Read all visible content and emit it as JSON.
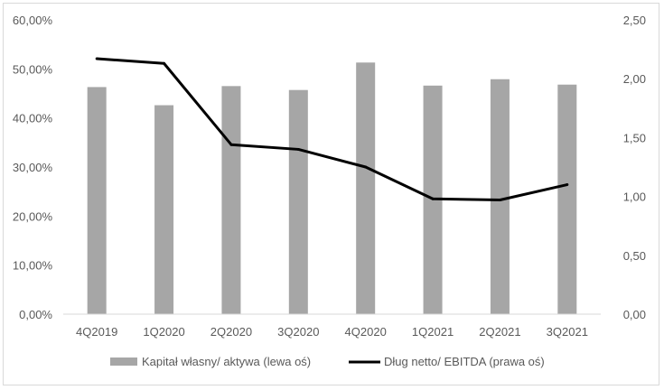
{
  "chart_data": {
    "type": "bar",
    "categories": [
      "4Q2019",
      "1Q2020",
      "2Q2020",
      "3Q2020",
      "4Q2020",
      "1Q2021",
      "2Q2021",
      "3Q2021"
    ],
    "series": [
      {
        "name": "Kapitał własny/ aktywa (lewa oś)",
        "type": "bar",
        "axis": "left",
        "values": [
          46.3,
          42.6,
          46.5,
          45.7,
          51.3,
          46.6,
          47.9,
          46.8
        ]
      },
      {
        "name": "Dług netto/ EBITDA (prawa oś)",
        "type": "line",
        "axis": "right",
        "values": [
          2.17,
          2.13,
          1.44,
          1.4,
          1.25,
          0.98,
          0.97,
          1.1
        ]
      }
    ],
    "left_axis": {
      "ylim": [
        0,
        60
      ],
      "ticks": [
        0,
        10,
        20,
        30,
        40,
        50,
        60
      ],
      "tick_labels": [
        "0,00%",
        "10,00%",
        "20,00%",
        "30,00%",
        "40,00%",
        "50,00%",
        "60,00%"
      ]
    },
    "right_axis": {
      "ylim": [
        0,
        2.5
      ],
      "ticks": [
        0,
        0.5,
        1.0,
        1.5,
        2.0,
        2.5
      ],
      "tick_labels": [
        "0,00",
        "0,50",
        "1,00",
        "1,50",
        "2,00",
        "2,50"
      ]
    },
    "grid": false,
    "legend_position": "bottom",
    "colors": {
      "bar": "#a6a6a6",
      "line": "#000000",
      "text": "#595959",
      "axis": "#d9d9d9"
    }
  }
}
